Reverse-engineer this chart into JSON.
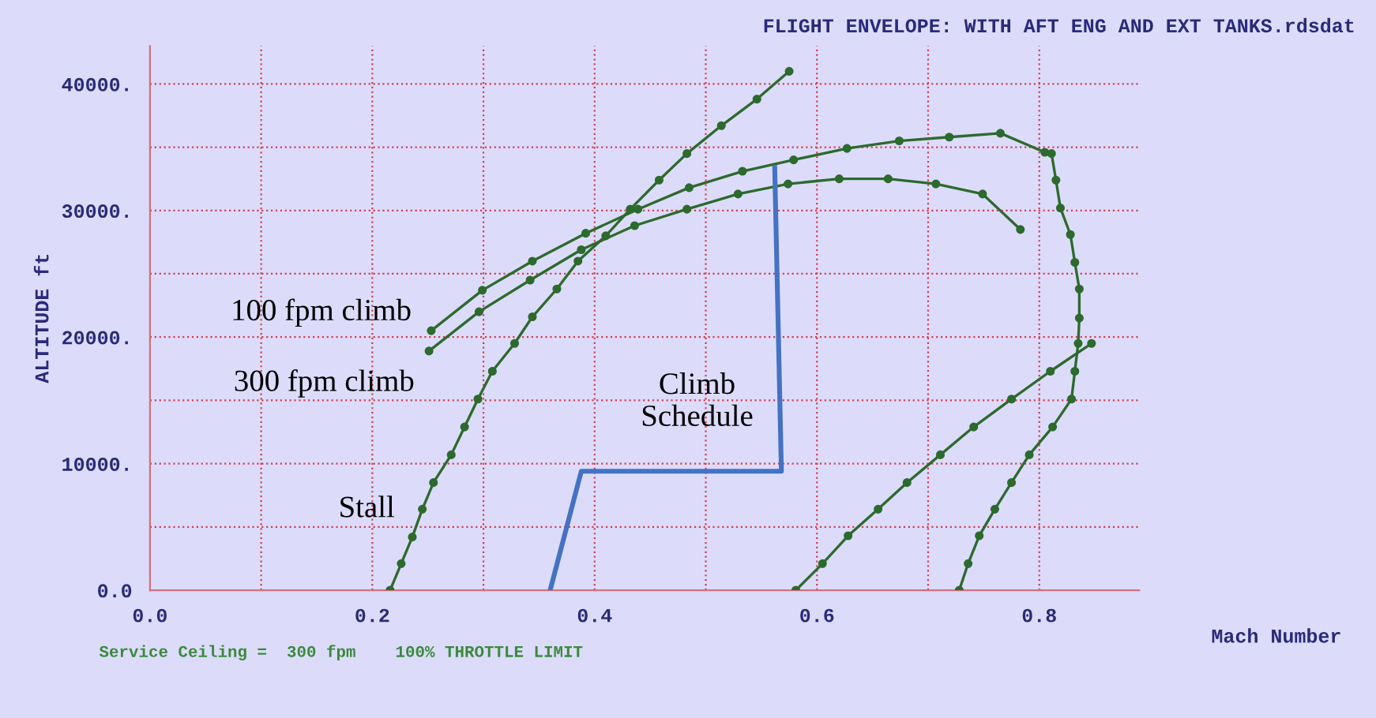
{
  "chart_data": {
    "type": "line",
    "title": "FLIGHT ENVELOPE: WITH AFT ENG AND EXT TANKS.rdsdat",
    "xlabel": "Mach Number",
    "ylabel": "ALTITUDE ft",
    "series": [
      {
        "color": "#2d6a2d",
        "x": [
          0.216,
          0.226,
          0.236,
          0.245,
          0.255,
          0.271,
          0.283,
          0.295,
          0.308,
          0.328,
          0.344,
          0.366,
          0.385,
          0.41,
          0.432,
          0.458,
          0.483,
          0.514,
          0.546,
          0.575
        ],
        "values": [
          0,
          2100,
          4200,
          6400,
          8500,
          10700,
          12900,
          15100,
          17300,
          19500,
          21600,
          23800,
          26000,
          28000,
          30100,
          32400,
          34500,
          36700,
          38800,
          41000
        ]
      },
      {
        "color": "#2d6a2d",
        "x": [
          0.253,
          0.299,
          0.344,
          0.392,
          0.439,
          0.485,
          0.533,
          0.579,
          0.627,
          0.674,
          0.719,
          0.765,
          0.805,
          0.811,
          0.815,
          0.819,
          0.828,
          0.832,
          0.836,
          0.836,
          0.835,
          0.832,
          0.829,
          0.812,
          0.791,
          0.775,
          0.76,
          0.746,
          0.736,
          0.728
        ],
        "values": [
          20500,
          23700,
          26000,
          28200,
          30100,
          31800,
          33100,
          34000,
          34900,
          35500,
          35800,
          36100,
          34600,
          34500,
          32400,
          30200,
          28100,
          25900,
          23800,
          21500,
          19500,
          17300,
          15100,
          12900,
          10700,
          8500,
          6400,
          4300,
          2100,
          0
        ]
      },
      {
        "color": "#2d6a2d",
        "x": [
          0.251,
          0.296,
          0.342,
          0.388,
          0.436,
          0.483,
          0.529,
          0.574,
          0.62,
          0.664,
          0.707,
          0.749,
          0.783
        ],
        "values": [
          18900,
          22000,
          24500,
          26900,
          28800,
          30100,
          31300,
          32100,
          32500,
          32500,
          32100,
          31300,
          28500
        ]
      },
      {
        "color": "#2d6a2d",
        "x": [
          0.581,
          0.605,
          0.628,
          0.655,
          0.681,
          0.711,
          0.741,
          0.775,
          0.81,
          0.847
        ],
        "values": [
          0,
          2100,
          4300,
          6400,
          8500,
          10700,
          12900,
          15100,
          17300,
          19500
        ]
      },
      {
        "color": "#4472c4",
        "marker": "none",
        "x": [
          0.36,
          0.388,
          0.568,
          0.562
        ],
        "values": [
          0,
          9400,
          9400,
          33400
        ]
      }
    ],
    "marker": "circle",
    "line_style": "solid",
    "grid": true,
    "xlim": [
      0,
      0.89
    ],
    "ylim": [
      0,
      43000
    ],
    "xticks": [
      {
        "value": 0,
        "label": "0.0"
      },
      {
        "value": 0.1,
        "label": null
      },
      {
        "value": 0.2,
        "label": "0.2"
      },
      {
        "value": 0.3,
        "label": null
      },
      {
        "value": 0.4,
        "label": "0.4"
      },
      {
        "value": 0.5,
        "label": null
      },
      {
        "value": 0.6,
        "label": "0.6"
      },
      {
        "value": 0.7,
        "label": null
      },
      {
        "value": 0.8,
        "label": "0.8"
      }
    ],
    "yticks": [
      {
        "value": 0,
        "label": "0.0"
      },
      {
        "value": 5000,
        "label": null
      },
      {
        "value": 10000,
        "label": "10000."
      },
      {
        "value": 15000,
        "label": null
      },
      {
        "value": 20000,
        "label": "20000."
      },
      {
        "value": 25000,
        "label": null
      },
      {
        "value": 30000,
        "label": "30000."
      },
      {
        "value": 35000,
        "label": null
      },
      {
        "value": 40000,
        "label": "40000."
      }
    ],
    "annotations": [
      "100 fpm climb",
      "300 fpm climb",
      "Stall",
      "Climb\nSchedule",
      "Service Ceiling =  300 fpm    100% THROTTLE LIMIT"
    ]
  }
}
